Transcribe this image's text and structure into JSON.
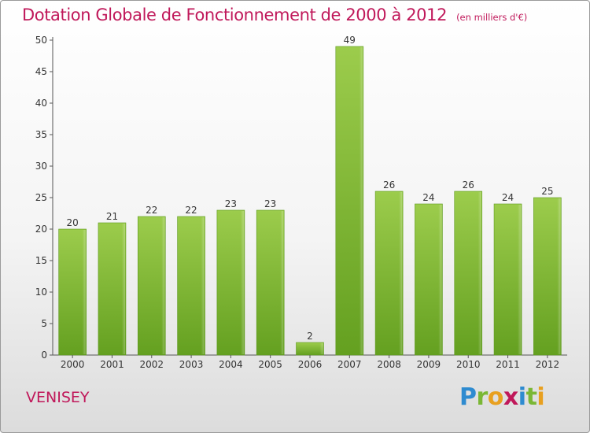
{
  "chart_data": {
    "type": "bar",
    "title": "Dotation Globale de Fonctionnement de 2000 à 2012",
    "subtitle": "(en milliers d'€)",
    "categories": [
      "2000",
      "2001",
      "2002",
      "2003",
      "2004",
      "2005",
      "2006",
      "2007",
      "2008",
      "2009",
      "2010",
      "2011",
      "2012"
    ],
    "values": [
      20,
      21,
      22,
      22,
      23,
      23,
      2,
      49,
      26,
      24,
      26,
      24,
      25
    ],
    "yticks": [
      0,
      5,
      10,
      15,
      20,
      25,
      30,
      35,
      40,
      45,
      50
    ],
    "ylim": [
      0,
      50
    ],
    "grid": false,
    "bar_color": "#7ab735",
    "axis_color": "#555555"
  },
  "commune": "VENISEY",
  "logo": {
    "text": "Proxiti",
    "letter_colors": [
      "#2e8bd0",
      "#7ab735",
      "#e8a020",
      "#c0185a",
      "#2e8bd0",
      "#7ab735",
      "#e8a020"
    ]
  },
  "colors": {
    "title": "#c0185a"
  }
}
